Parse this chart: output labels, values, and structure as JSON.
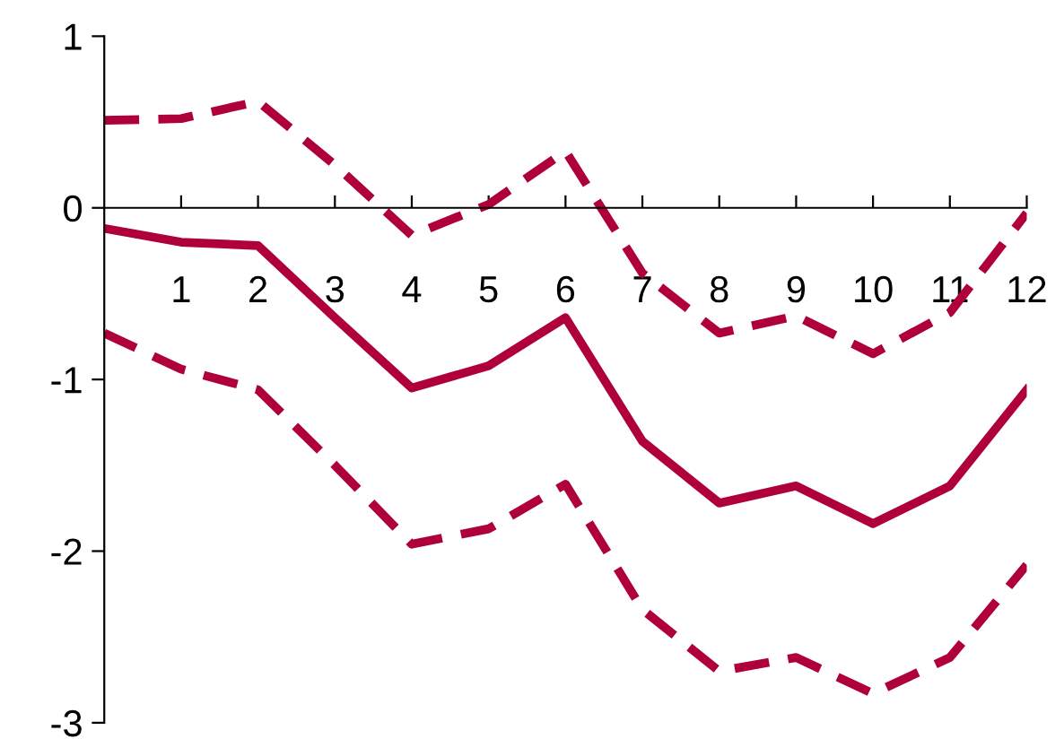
{
  "chart_data": {
    "type": "line",
    "x": [
      0,
      1,
      2,
      3,
      4,
      5,
      6,
      7,
      8,
      9,
      10,
      11,
      12
    ],
    "series": [
      {
        "color": "#b0003c",
        "line_style": "solid",
        "values": [
          -0.12,
          -0.2,
          -0.22,
          -0.64,
          -1.05,
          -0.92,
          -0.64,
          -1.36,
          -1.72,
          -1.62,
          -1.84,
          -1.62,
          -1.06
        ]
      },
      {
        "color": "#b0003c",
        "line_style": "dashed",
        "values": [
          0.51,
          0.52,
          0.62,
          0.25,
          -0.16,
          0.02,
          0.33,
          -0.38,
          -0.73,
          -0.63,
          -0.85,
          -0.61,
          -0.03
        ]
      },
      {
        "color": "#b0003c",
        "line_style": "dashed",
        "values": [
          -0.73,
          -0.94,
          -1.06,
          -1.5,
          -1.96,
          -1.87,
          -1.61,
          -2.34,
          -2.7,
          -2.62,
          -2.83,
          -2.62,
          -2.08
        ]
      }
    ],
    "xlim": [
      0,
      12
    ],
    "xticks": [
      1,
      2,
      3,
      4,
      5,
      6,
      7,
      8,
      9,
      10,
      11,
      12
    ],
    "ylim": [
      -3,
      1
    ],
    "yticks": [
      -3,
      -2,
      -1,
      0,
      1
    ],
    "grid": false,
    "legend": false,
    "marker": "none"
  }
}
